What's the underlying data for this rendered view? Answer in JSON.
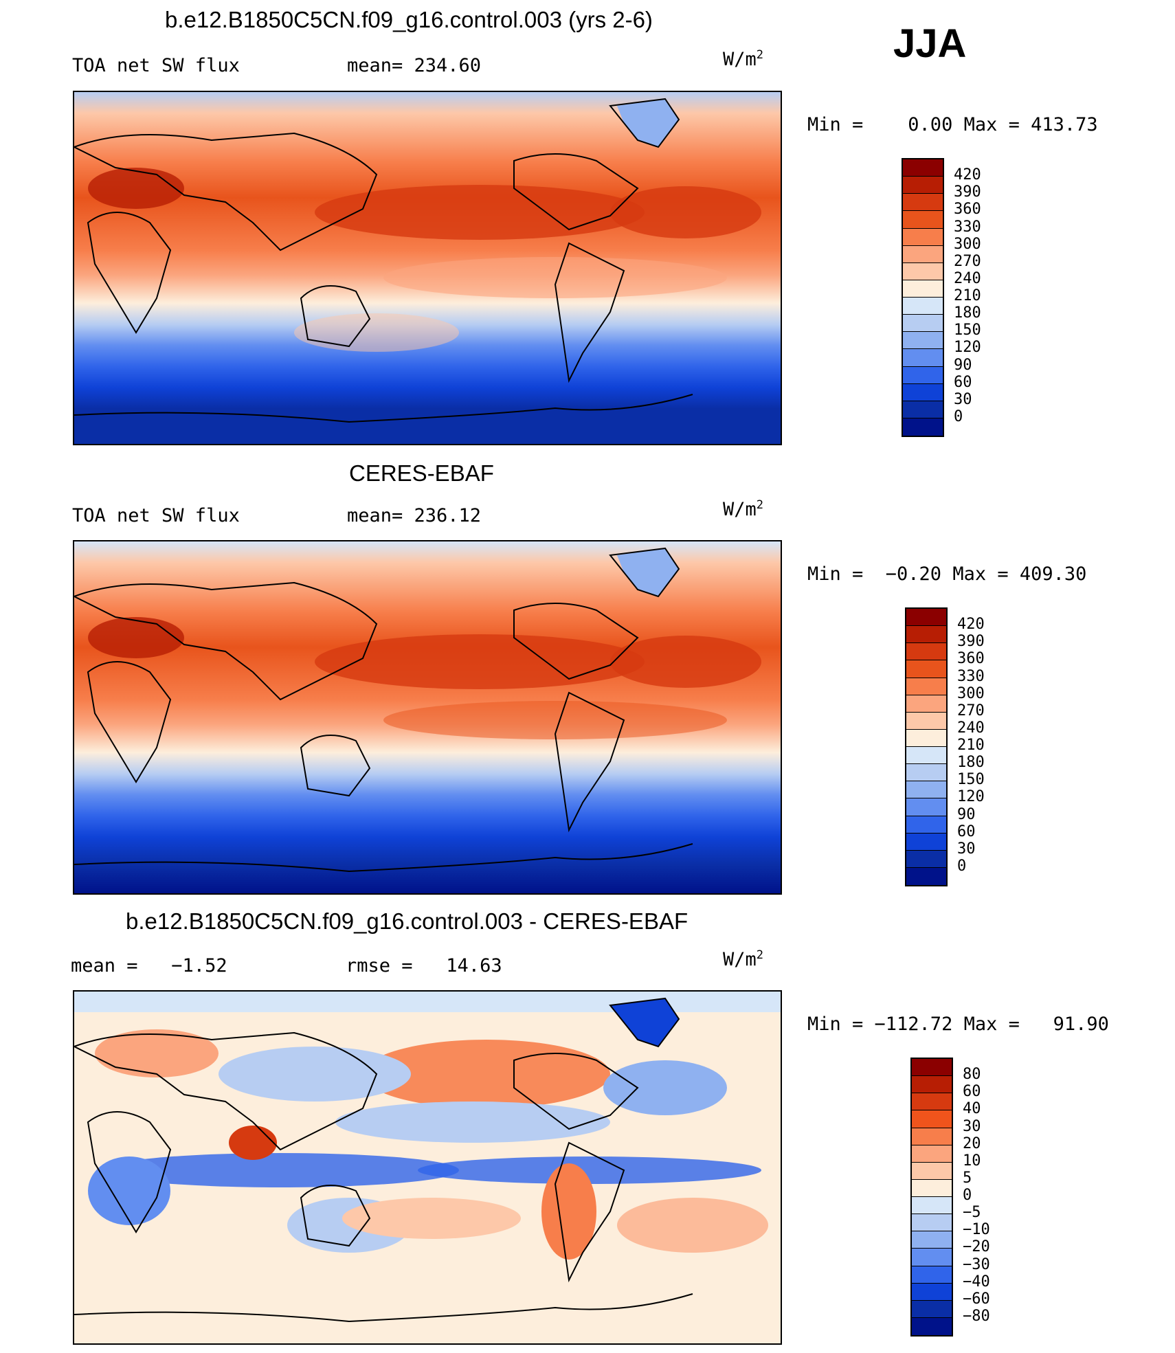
{
  "season": "JJA",
  "panels": [
    {
      "title": "b.e12.B1850C5CN.f09_g16.control.003 (yrs 2-6)",
      "left_label": "TOA net SW flux",
      "center_label": "mean= 234.60",
      "units": "W/m",
      "units_exp": "2",
      "minmax": "Min =    0.00 Max = 413.73",
      "colorbar_levels": [
        "420",
        "390",
        "360",
        "330",
        "300",
        "270",
        "240",
        "210",
        "180",
        "150",
        "120",
        "90",
        "60",
        "30",
        "0"
      ],
      "colorbar_colors": [
        "#8b0000",
        "#b71e04",
        "#d63a10",
        "#e8541c",
        "#f77e4b",
        "#fba57e",
        "#fdc8a9",
        "#fdeedc",
        "#d6e6f8",
        "#b7cdf2",
        "#8fb1f0",
        "#628ef0",
        "#3064ea",
        "#0f42d7",
        "#0a2ea6",
        "#00128a"
      ]
    },
    {
      "title": "CERES-EBAF",
      "left_label": "TOA net SW flux",
      "center_label": "mean= 236.12",
      "units": "W/m",
      "units_exp": "2",
      "minmax": "Min =  −0.20 Max = 409.30",
      "colorbar_levels": [
        "420",
        "390",
        "360",
        "330",
        "300",
        "270",
        "240",
        "210",
        "180",
        "150",
        "120",
        "90",
        "60",
        "30",
        "0"
      ],
      "colorbar_colors": [
        "#8b0000",
        "#b71e04",
        "#d63a10",
        "#e8541c",
        "#f77e4b",
        "#fba57e",
        "#fdc8a9",
        "#fdeedc",
        "#d6e6f8",
        "#b7cdf2",
        "#8fb1f0",
        "#628ef0",
        "#3064ea",
        "#0f42d7",
        "#0a2ea6",
        "#00128a"
      ]
    },
    {
      "title": "b.e12.B1850C5CN.f09_g16.control.003 - CERES-EBAF",
      "left_label": "mean =   −1.52",
      "center_label": "rmse =   14.63",
      "units": "W/m",
      "units_exp": "2",
      "minmax": "Min = −112.72 Max =   91.90",
      "colorbar_levels": [
        "80",
        "60",
        "40",
        "30",
        "20",
        "10",
        "5",
        "0",
        "−5",
        "−10",
        "−20",
        "−30",
        "−40",
        "−60",
        "−80"
      ],
      "colorbar_colors": [
        "#8b0000",
        "#b71e04",
        "#d63a10",
        "#f0541c",
        "#f77e4b",
        "#fba57e",
        "#fdc8a9",
        "#fdeedc",
        "#d6e6f8",
        "#b7cdf2",
        "#8fb1f0",
        "#628ef0",
        "#3064ea",
        "#0f42d7",
        "#0a2ea6",
        "#00128a"
      ]
    }
  ]
}
